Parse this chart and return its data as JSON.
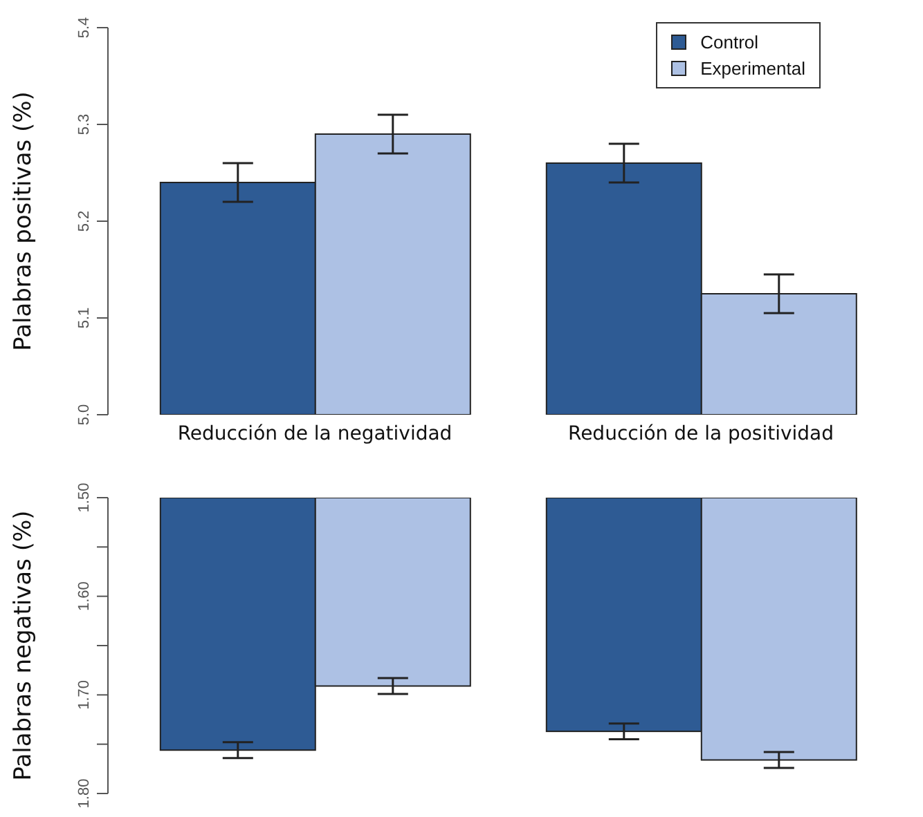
{
  "chart_data": [
    {
      "type": "bar",
      "ylabel": "Palabras positivas (%)",
      "categories": [
        "Reducción de la negatividad",
        "Reducción de la positividad"
      ],
      "series": [
        {
          "name": "Control",
          "color": "#2e5b94",
          "values": [
            5.24,
            5.26
          ],
          "errors": [
            0.02,
            0.02
          ]
        },
        {
          "name": "Experimental",
          "color": "#adc1e4",
          "values": [
            5.29,
            5.125
          ],
          "errors": [
            0.02,
            0.02
          ]
        }
      ],
      "ylim": [
        5.0,
        5.4
      ],
      "yticks": [
        {
          "value": 5.0,
          "label": "5.0"
        },
        5.1,
        5.2,
        5.3,
        5.4
      ],
      "legend": "top right",
      "grid": false
    },
    {
      "type": "bar",
      "ylabel": "Palabras negativas (%)",
      "categories": [
        null,
        null
      ],
      "series": [
        {
          "color": "#2e5b94",
          "values": [
            1.756,
            1.737
          ],
          "errors": [
            0.008,
            0.008
          ]
        },
        {
          "color": "#adc1e4",
          "values": [
            1.691,
            1.766
          ],
          "errors": [
            0.008,
            0.008
          ]
        }
      ],
      "ylim": [
        1.8,
        1.5
      ],
      "yticks": [
        {
          "value": 1.5,
          "label": "1.50"
        },
        {
          "value": 1.55,
          "label": null
        },
        {
          "value": 1.6,
          "label": "1.60"
        },
        {
          "value": 1.65,
          "label": null
        },
        {
          "value": 1.7,
          "label": "1.70"
        },
        {
          "value": 1.75,
          "label": null
        },
        {
          "value": 1.8,
          "label": "1.80"
        }
      ],
      "grid": false
    }
  ]
}
